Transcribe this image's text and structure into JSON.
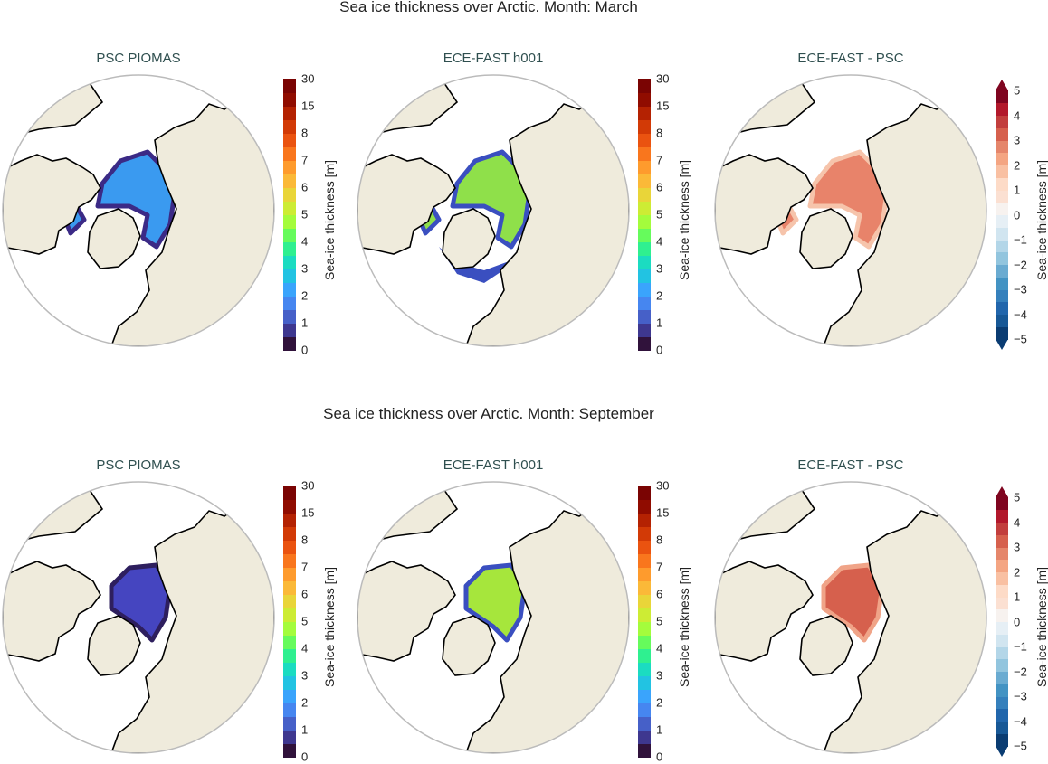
{
  "rows": [
    {
      "title": "Sea ice thickness over Arctic. Month: March",
      "panels": [
        {
          "title": "PSC PIOMAS",
          "kind": "thick",
          "ice_color": "#3a9af0",
          "ice_edge": "#3b2a86"
        },
        {
          "title": "ECE-FAST h001",
          "kind": "thick",
          "ice_color": "#8fe04a",
          "ice_edge": "#3a4fc0"
        },
        {
          "title": "ECE-FAST -  PSC",
          "kind": "diff",
          "ice_color": "#e8836a",
          "ice_edge": "#f6c4ab"
        }
      ]
    },
    {
      "title": "Sea ice thickness over Arctic. Month: September",
      "panels": [
        {
          "title": "PSC PIOMAS",
          "kind": "thick",
          "ice_color": "#4545c0",
          "ice_edge": "#2e1f5e"
        },
        {
          "title": "ECE-FAST h001",
          "kind": "thick",
          "ice_color": "#a6e63c",
          "ice_edge": "#3a4fc0"
        },
        {
          "title": "ECE-FAST -  PSC",
          "kind": "diff",
          "ice_color": "#d6604d",
          "ice_edge": "#f0a488"
        }
      ]
    }
  ],
  "colorbars": {
    "thick": {
      "label": "Sea-ice thickness [m]",
      "ticks": [
        "0",
        "1",
        "2",
        "3",
        "4",
        "5",
        "6",
        "7",
        "8",
        "15",
        "30"
      ],
      "colors": [
        "#30123b",
        "#3e378f",
        "#4660c8",
        "#4686f0",
        "#3aa4fc",
        "#22c3e2",
        "#1bdcc1",
        "#2ff090",
        "#66fb5c",
        "#a4fc3c",
        "#cdec34",
        "#e9d539",
        "#fbb938",
        "#fe9b2d",
        "#f9761d",
        "#ea5310",
        "#d23a06",
        "#b42202",
        "#900c00",
        "#7a0403"
      ]
    },
    "diff": {
      "label": "Sea-ice thickness [m]",
      "ticks": [
        "−5",
        "−4",
        "−3",
        "−2",
        "−1",
        "0",
        "1",
        "2",
        "3",
        "4",
        "5"
      ],
      "extend": "both",
      "colors": [
        "#0a3c72",
        "#175896",
        "#2166ac",
        "#3580bc",
        "#4393c3",
        "#6aabd1",
        "#92c5de",
        "#b3d6e8",
        "#d1e5f0",
        "#e6eff5",
        "#f7f2ef",
        "#fbe0d2",
        "#fddbc7",
        "#f9c0a2",
        "#f4a582",
        "#e5866b",
        "#d6604d",
        "#c23e3d",
        "#b2182b",
        "#7f0520"
      ]
    }
  },
  "map_colors": {
    "land": "#efebdc",
    "coast": "#000000",
    "boundary": "#bbbbbb"
  }
}
